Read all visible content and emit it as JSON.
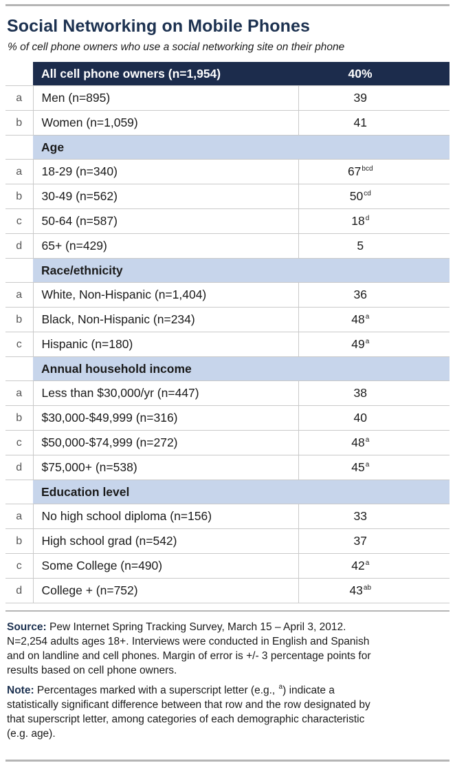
{
  "title": "Social Networking on Mobile Phones",
  "subtitle": "% of cell phone owners who use a social networking site on their phone",
  "header": {
    "label": "All cell phone owners (n=1,954)",
    "value": "40%"
  },
  "rows": [
    {
      "kind": "data",
      "letter": "a",
      "label": "Men (n=895)",
      "value": "39",
      "sup": ""
    },
    {
      "kind": "data",
      "letter": "b",
      "label": "Women (n=1,059)",
      "value": "41",
      "sup": ""
    },
    {
      "kind": "section",
      "label": "Age"
    },
    {
      "kind": "data",
      "letter": "a",
      "label": "18-29 (n=340)",
      "value": "67",
      "sup": "bcd"
    },
    {
      "kind": "data",
      "letter": "b",
      "label": "30-49 (n=562)",
      "value": "50",
      "sup": "cd"
    },
    {
      "kind": "data",
      "letter": "c",
      "label": "50-64 (n=587)",
      "value": "18",
      "sup": "d"
    },
    {
      "kind": "data",
      "letter": "d",
      "label": "65+ (n=429)",
      "value": "5",
      "sup": ""
    },
    {
      "kind": "section",
      "label": "Race/ethnicity"
    },
    {
      "kind": "data",
      "letter": "a",
      "label": "White, Non-Hispanic (n=1,404)",
      "value": "36",
      "sup": ""
    },
    {
      "kind": "data",
      "letter": "b",
      "label": "Black, Non-Hispanic (n=234)",
      "value": "48",
      "sup": "a"
    },
    {
      "kind": "data",
      "letter": "c",
      "label": "Hispanic (n=180)",
      "value": "49",
      "sup": "a"
    },
    {
      "kind": "section",
      "label": "Annual household income"
    },
    {
      "kind": "data",
      "letter": "a",
      "label": "Less than $30,000/yr (n=447)",
      "value": "38",
      "sup": ""
    },
    {
      "kind": "data",
      "letter": "b",
      "label": "$30,000-$49,999 (n=316)",
      "value": "40",
      "sup": ""
    },
    {
      "kind": "data",
      "letter": "c",
      "label": "$50,000-$74,999 (n=272)",
      "value": "48",
      "sup": "a"
    },
    {
      "kind": "data",
      "letter": "d",
      "label": "$75,000+ (n=538)",
      "value": "45",
      "sup": "a"
    },
    {
      "kind": "section",
      "label": "Education level"
    },
    {
      "kind": "data",
      "letter": "a",
      "label": "No high school diploma (n=156)",
      "value": "33",
      "sup": ""
    },
    {
      "kind": "data",
      "letter": "b",
      "label": "High school grad (n=542)",
      "value": "37",
      "sup": ""
    },
    {
      "kind": "data",
      "letter": "c",
      "label": "Some College (n=490)",
      "value": "42",
      "sup": "a"
    },
    {
      "kind": "data",
      "letter": "d",
      "label": "College + (n=752)",
      "value": "43",
      "sup": "ab"
    }
  ],
  "source": {
    "label": "Source:",
    "lines": [
      " Pew Internet Spring Tracking Survey, March 15 – April 3, 2012.",
      "N=2,254 adults ages 18+. Interviews were conducted in English and Spanish",
      "and on landline and cell phones.  Margin of error is +/- 3 percentage points for",
      "results based on cell phone owners."
    ]
  },
  "note": {
    "label": "Note:",
    "lines_before_sup": " Percentages marked with a superscript letter (e.g., ",
    "sup": "a",
    "lines_after_sup": ") indicate a",
    "lines": [
      "statistically significant difference between that row and the row designated by",
      "that superscript letter, among categories of each demographic characteristic",
      "(e.g. age)."
    ]
  }
}
